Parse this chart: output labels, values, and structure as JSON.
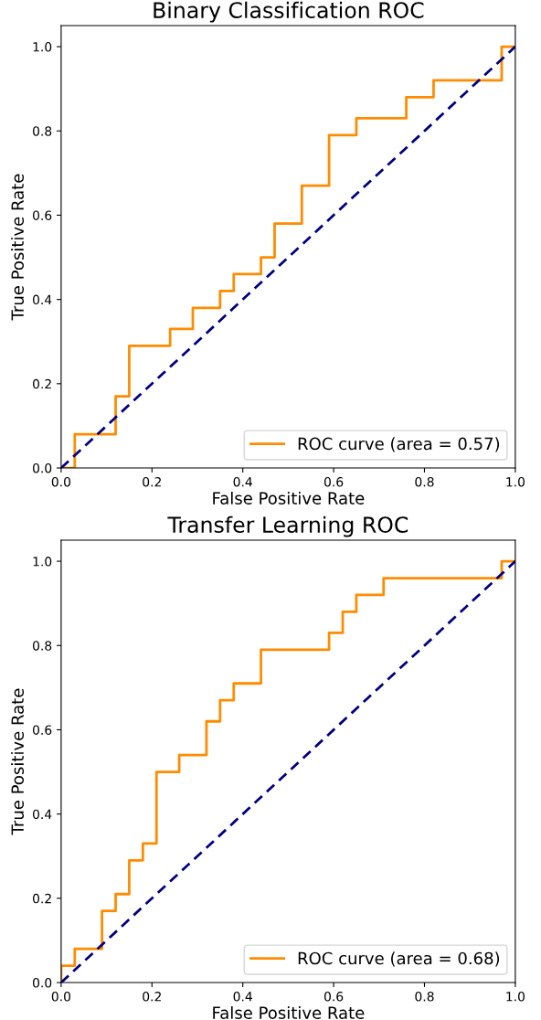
{
  "chart_data": [
    {
      "type": "line",
      "title": "Binary Classification ROC",
      "xlabel": "False Positive Rate",
      "ylabel": "True Positive Rate",
      "xlim": [
        0,
        1
      ],
      "ylim": [
        0,
        1.05
      ],
      "xticks": [
        {
          "value": 0,
          "label": "0.0"
        },
        {
          "value": 0.2,
          "label": "0.2"
        },
        {
          "value": 0.4,
          "label": "0.4"
        },
        {
          "value": 0.6,
          "label": "0.6"
        },
        {
          "value": 0.8,
          "label": "0.8"
        },
        {
          "value": 1,
          "label": "1.0"
        }
      ],
      "yticks": [
        {
          "value": 0,
          "label": "0.0"
        },
        {
          "value": 0.2,
          "label": "0.2"
        },
        {
          "value": 0.4,
          "label": "0.4"
        },
        {
          "value": 0.6,
          "label": "0.6"
        },
        {
          "value": 0.8,
          "label": "0.8"
        },
        {
          "value": 1,
          "label": "1.0"
        }
      ],
      "legend": "bottom right",
      "grid": false,
      "series": [
        {
          "name": "ROC curve (area = 0.57)",
          "color": "#ff8c00",
          "line_style": "solid",
          "x": [
            0,
            0.03,
            0.03,
            0.12,
            0.12,
            0.15,
            0.15,
            0.24,
            0.24,
            0.29,
            0.29,
            0.35,
            0.35,
            0.38,
            0.38,
            0.44,
            0.44,
            0.47,
            0.47,
            0.53,
            0.53,
            0.59,
            0.59,
            0.65,
            0.65,
            0.76,
            0.76,
            0.82,
            0.82,
            0.97,
            0.97,
            1
          ],
          "values": [
            0,
            0,
            0.08,
            0.08,
            0.17,
            0.17,
            0.29,
            0.29,
            0.33,
            0.33,
            0.38,
            0.38,
            0.42,
            0.42,
            0.46,
            0.46,
            0.5,
            0.5,
            0.58,
            0.58,
            0.67,
            0.67,
            0.79,
            0.79,
            0.83,
            0.83,
            0.88,
            0.88,
            0.92,
            0.92,
            1,
            1
          ]
        },
        {
          "color": "#000080",
          "line_style": "dashed",
          "x": [
            0,
            1
          ],
          "values": [
            0,
            1
          ]
        }
      ]
    },
    {
      "type": "line",
      "title": "Transfer Learning ROC",
      "xlabel": "False Positive Rate",
      "ylabel": "True Positive Rate",
      "xlim": [
        0,
        1
      ],
      "ylim": [
        0,
        1.05
      ],
      "xticks": [
        {
          "value": 0,
          "label": "0.0"
        },
        {
          "value": 0.2,
          "label": "0.2"
        },
        {
          "value": 0.4,
          "label": "0.4"
        },
        {
          "value": 0.6,
          "label": "0.6"
        },
        {
          "value": 0.8,
          "label": "0.8"
        },
        {
          "value": 1,
          "label": "1.0"
        }
      ],
      "yticks": [
        {
          "value": 0,
          "label": "0.0"
        },
        {
          "value": 0.2,
          "label": "0.2"
        },
        {
          "value": 0.4,
          "label": "0.4"
        },
        {
          "value": 0.6,
          "label": "0.6"
        },
        {
          "value": 0.8,
          "label": "0.8"
        },
        {
          "value": 1,
          "label": "1.0"
        }
      ],
      "legend": "bottom right",
      "grid": false,
      "series": [
        {
          "name": "ROC curve (area = 0.68)",
          "color": "#ff8c00",
          "line_style": "solid",
          "x": [
            0,
            0,
            0.03,
            0.03,
            0.09,
            0.09,
            0.12,
            0.12,
            0.15,
            0.15,
            0.18,
            0.18,
            0.21,
            0.21,
            0.26,
            0.26,
            0.32,
            0.32,
            0.35,
            0.35,
            0.38,
            0.38,
            0.44,
            0.44,
            0.59,
            0.59,
            0.62,
            0.62,
            0.65,
            0.65,
            0.71,
            0.71,
            0.97,
            0.97,
            1
          ],
          "values": [
            0,
            0.04,
            0.04,
            0.08,
            0.08,
            0.17,
            0.17,
            0.21,
            0.21,
            0.29,
            0.29,
            0.33,
            0.33,
            0.5,
            0.5,
            0.54,
            0.54,
            0.62,
            0.62,
            0.67,
            0.67,
            0.71,
            0.71,
            0.79,
            0.79,
            0.83,
            0.83,
            0.88,
            0.88,
            0.92,
            0.92,
            0.96,
            0.96,
            1,
            1
          ]
        },
        {
          "color": "#000080",
          "line_style": "dashed",
          "x": [
            0,
            1
          ],
          "values": [
            0,
            1
          ]
        }
      ]
    }
  ]
}
